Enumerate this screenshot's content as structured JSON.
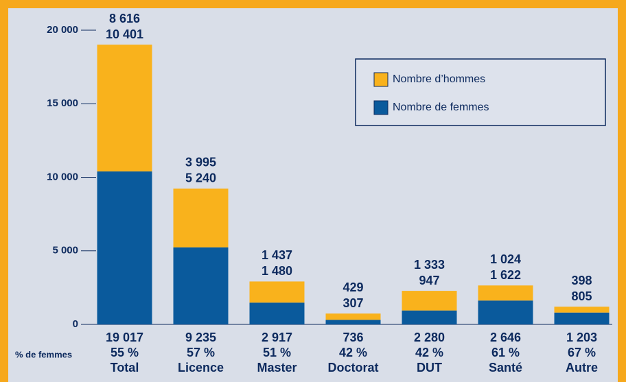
{
  "chart_data": {
    "type": "stacked-bar",
    "categories": [
      "Total",
      "Licence",
      "Master",
      "Doctorat",
      "DUT",
      "Santé",
      "Autre"
    ],
    "series": [
      {
        "name": "Nombre de femmes",
        "color": "#0a5a9c",
        "label_color": "#0d2a5e",
        "values": [
          10401,
          5240,
          1480,
          307,
          947,
          1622,
          805
        ],
        "value_labels": [
          "10 401",
          "5 240",
          "1 480",
          "307",
          "947",
          "1 622",
          "805"
        ]
      },
      {
        "name": "Nombre d’hommes",
        "color": "#f9b21c",
        "label_color": "#f9b21c",
        "values": [
          8616,
          3995,
          1437,
          429,
          1333,
          1024,
          398
        ],
        "value_labels": [
          "8 616",
          "3 995",
          "1 437",
          "429",
          "1 333",
          "1 024",
          "398"
        ]
      }
    ],
    "total_labels": [
      "19 017",
      "9 235",
      "2 917",
      "736",
      "2 280",
      "2 646",
      "1 203"
    ],
    "percent_title": "% de femmes",
    "percent_labels": [
      "55 %",
      "57 %",
      "51 %",
      "42 %",
      "42 %",
      "61 %",
      "67 %"
    ],
    "ylim": [
      0,
      20000
    ],
    "yticks": [
      0,
      {
        "value": 5000,
        "label": "5 000"
      },
      {
        "value": 10000,
        "label": "10 000"
      },
      {
        "value": 15000,
        "label": "15 000"
      },
      {
        "value": 20000,
        "label": "20 000"
      }
    ],
    "legend": "top-right"
  }
}
